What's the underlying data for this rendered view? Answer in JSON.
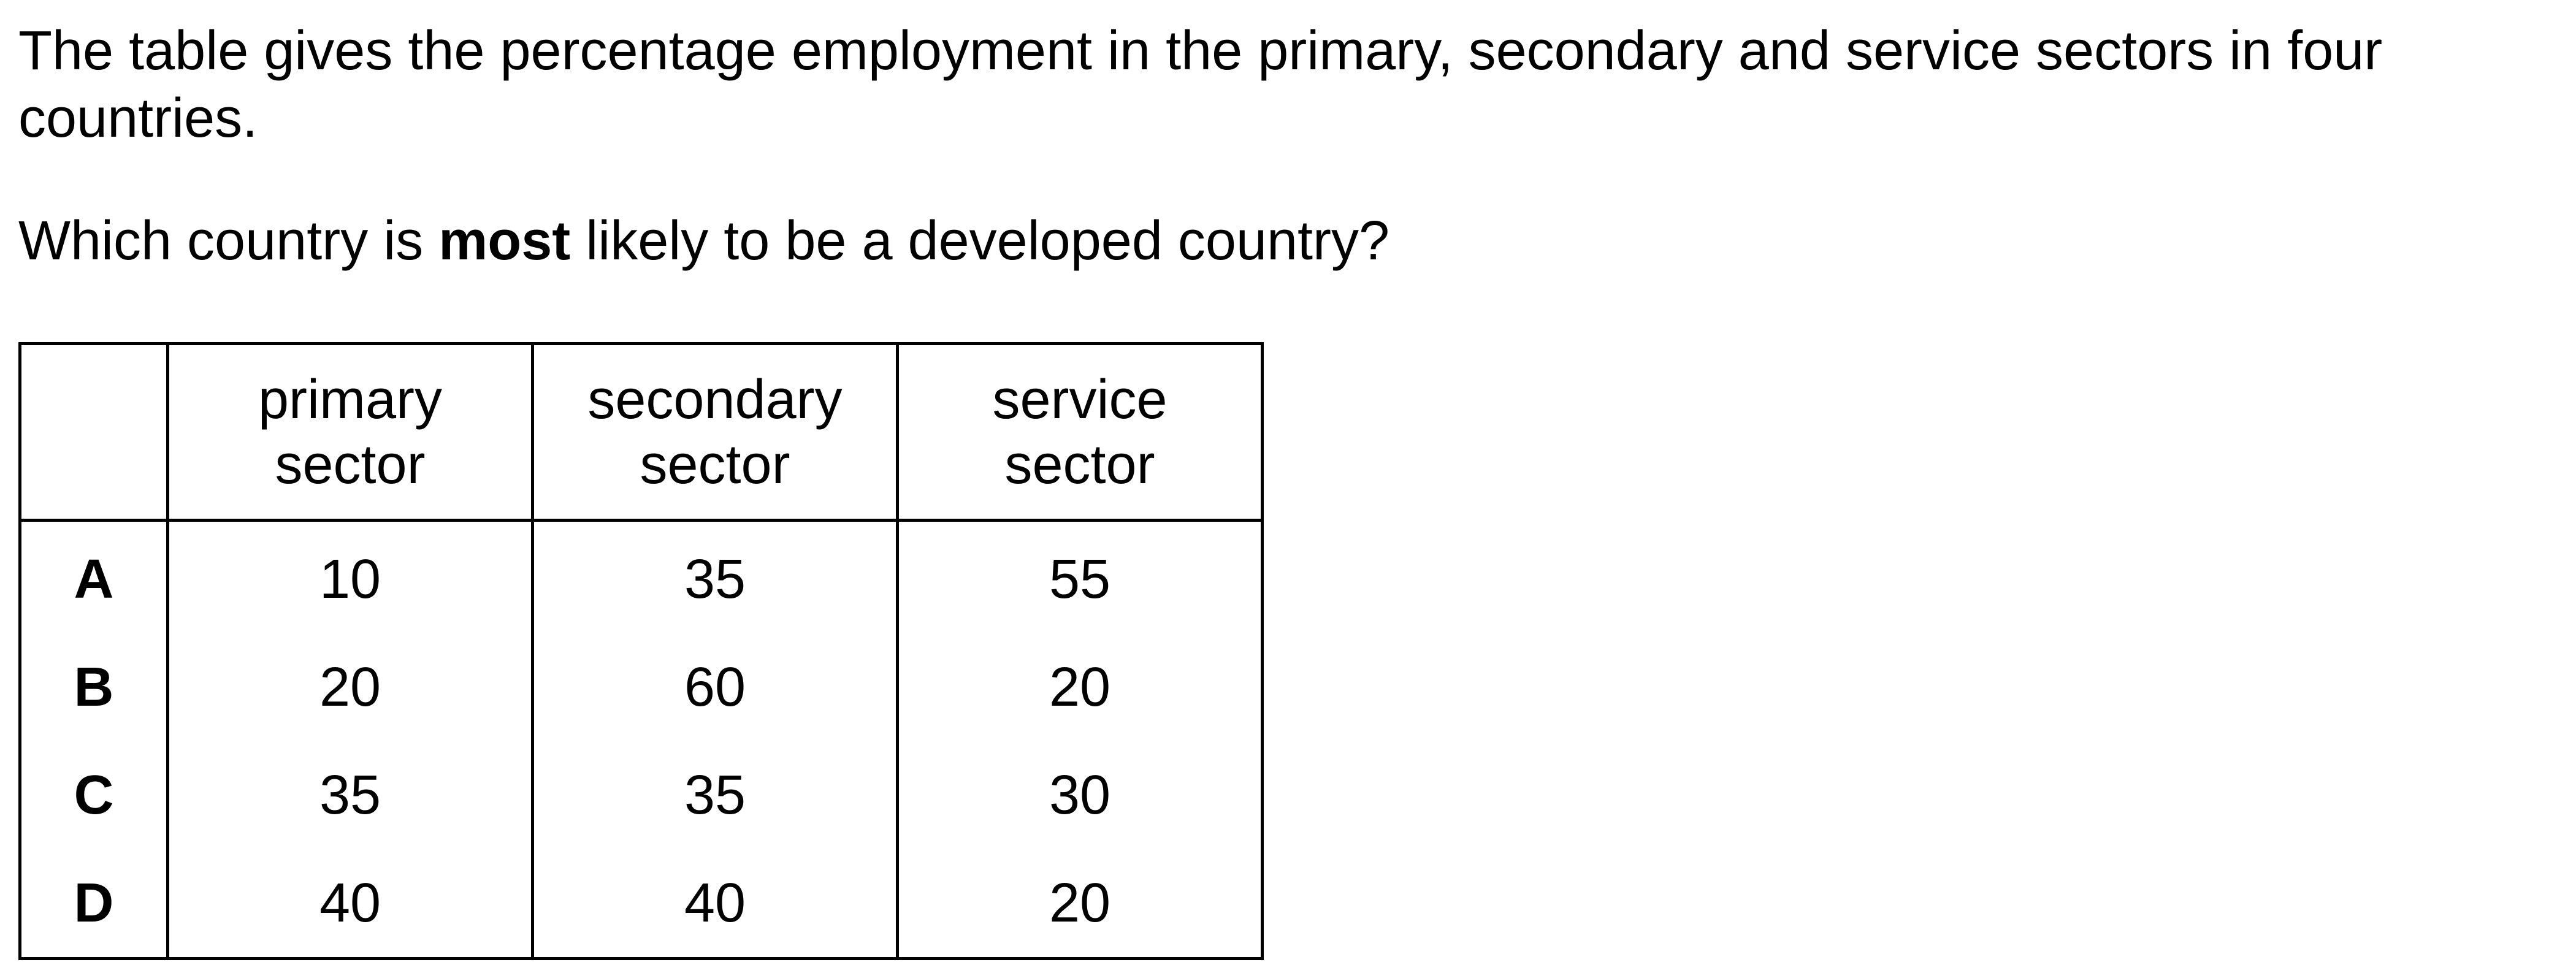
{
  "question": {
    "intro": "The table gives the percentage employment in the primary, secondary and service sectors in four countries.",
    "prompt_before": "Which country is ",
    "prompt_bold": "most",
    "prompt_after": " likely to be a developed country?"
  },
  "table": {
    "headers": [
      {
        "line1": "primary",
        "line2": "sector"
      },
      {
        "line1": "secondary",
        "line2": "sector"
      },
      {
        "line1": "service",
        "line2": "sector"
      }
    ],
    "rows": [
      {
        "label": "A",
        "values": [
          "10",
          "35",
          "55"
        ]
      },
      {
        "label": "B",
        "values": [
          "20",
          "60",
          "20"
        ]
      },
      {
        "label": "C",
        "values": [
          "35",
          "35",
          "30"
        ]
      },
      {
        "label": "D",
        "values": [
          "40",
          "40",
          "20"
        ]
      }
    ]
  }
}
